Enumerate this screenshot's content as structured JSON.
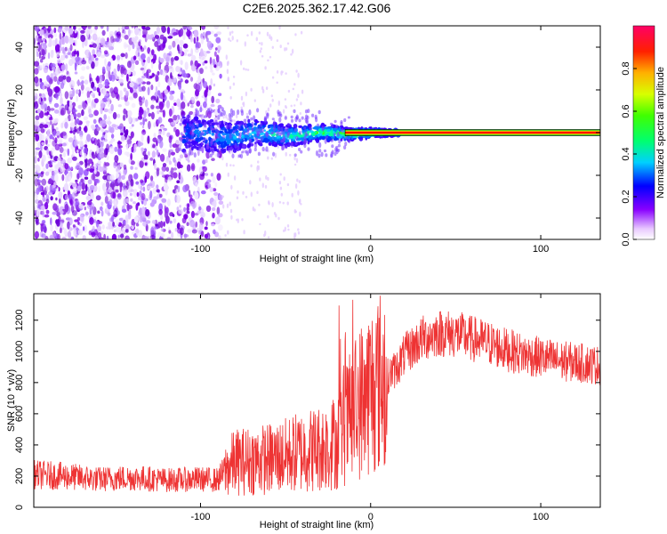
{
  "title": "C2E6.2025.362.17.42.G06",
  "colors": {
    "snr_line": "#ee3333",
    "track_center": "#ff0000",
    "track_inner": "#ffe000",
    "track_outer": "#22cc22",
    "low_amp": "#7a00e6"
  },
  "chart_data": [
    {
      "type": "heatmap",
      "name": "spectrogram",
      "xlabel": "Height of straight line (km)",
      "ylabel": "Frequency (Hz)",
      "xlim": [
        -198,
        135
      ],
      "ylim": [
        -50,
        50
      ],
      "xticks": [
        -100,
        0,
        100
      ],
      "xtick_labels": [
        "-100",
        "0",
        "100"
      ],
      "yticks": [
        -40,
        -20,
        0,
        20,
        40
      ],
      "ytick_labels": [
        "-40",
        "-20",
        "0",
        "20",
        "40"
      ],
      "colorbar": {
        "label": "Normalized spectral amplitude",
        "range": [
          0,
          1
        ],
        "ticks": [
          0.0,
          0.2,
          0.4,
          0.6,
          0.8
        ],
        "tick_labels": [
          "0.0",
          "0.2",
          "0.4",
          "0.6",
          "0.8"
        ]
      },
      "features": {
        "noise_region_x": [
          -198,
          -88
        ],
        "spread_region_x": [
          -110,
          18
        ],
        "carrier_line_x": [
          -15,
          135
        ],
        "carrier_frequency": 0
      }
    },
    {
      "type": "line",
      "name": "snr",
      "xlabel": "Height of straight line (km)",
      "ylabel": "SNR (10 * v/v)",
      "xlim": [
        -198,
        135
      ],
      "ylim": [
        0,
        1370
      ],
      "xticks": [
        -100,
        0,
        100
      ],
      "xtick_labels": [
        "-100",
        "0",
        "100"
      ],
      "yticks": [
        0,
        200,
        400,
        600,
        800,
        1000,
        1200
      ],
      "ytick_labels": [
        "0",
        "200",
        "400",
        "600",
        "800",
        "1000",
        "1200"
      ],
      "series": [
        {
          "name": "SNR",
          "x": [
            -198,
            -180,
            -160,
            -140,
            -120,
            -100,
            -90,
            -86,
            -80,
            -70,
            -60,
            -50,
            -40,
            -30,
            -20,
            -15,
            -10,
            -5,
            0,
            5,
            10,
            15,
            20,
            30,
            40,
            50,
            60,
            70,
            80,
            90,
            100,
            110,
            120,
            135
          ],
          "values": [
            210,
            200,
            180,
            190,
            175,
            180,
            175,
            230,
            290,
            300,
            310,
            330,
            360,
            380,
            420,
            520,
            600,
            700,
            760,
            800,
            840,
            890,
            980,
            1080,
            1120,
            1110,
            1080,
            1050,
            1010,
            980,
            960,
            940,
            930,
            910
          ]
        }
      ]
    }
  ]
}
